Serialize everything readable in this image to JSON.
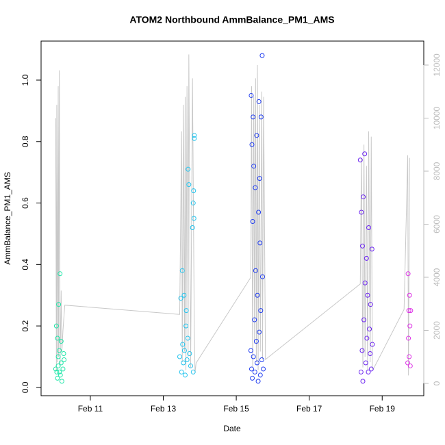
{
  "chart_data": {
    "type": "scatter",
    "title": "ATOM2 Northbound AmmBalance_PM1_AMS",
    "x_label": "Date",
    "y_label": "AmmBalance_PM1_AMS",
    "xlim": [
      9.65,
      20.14
    ],
    "xticks": [
      {
        "value": 11,
        "label": "Feb 11"
      },
      {
        "value": 13,
        "label": "Feb 13"
      },
      {
        "value": 15,
        "label": "Feb 15"
      },
      {
        "value": 17,
        "label": "Feb 17"
      },
      {
        "value": 19,
        "label": "Feb 19"
      }
    ],
    "ylim": [
      -0.027,
      1.127
    ],
    "yticks": [
      {
        "value": 0,
        "label": "0.0"
      },
      {
        "value": 0.2,
        "label": "0.2"
      },
      {
        "value": 0.4,
        "label": "0.4"
      },
      {
        "value": 0.6,
        "label": "0.6"
      },
      {
        "value": 0.8,
        "label": "0.8"
      },
      {
        "value": 1,
        "label": "1.0"
      }
    ],
    "y2lim": [
      -464,
      12903
    ],
    "y2ticks": [
      0,
      2000,
      4000,
      6000,
      8000,
      10000,
      12000
    ],
    "y2_color": "#bbbbbb",
    "series": [
      {
        "color": "#1ee6a8",
        "x": [
          10.05,
          10.07,
          10.08,
          10.1,
          10.1,
          10.12,
          10.12,
          10.13,
          10.15,
          10.15,
          10.17,
          10.18,
          10.2,
          10.2,
          10.22,
          10.25,
          10.27,
          10.28
        ],
        "values": [
          0.06,
          0.2,
          0.05,
          0.16,
          0.03,
          0.1,
          0.07,
          0.27,
          0.05,
          0.12,
          0.37,
          0.04,
          0.08,
          0.15,
          0.02,
          0.06,
          0.11,
          0.09
        ]
      },
      {
        "color": "#22c4ee",
        "x": [
          13.45,
          13.48,
          13.5,
          13.52,
          13.53,
          13.55,
          13.57,
          13.58,
          13.6,
          13.62,
          13.63,
          13.65,
          13.67,
          13.68,
          13.7,
          13.72,
          13.75,
          13.8,
          13.82,
          13.83,
          13.85,
          13.85,
          13.84,
          13.82
        ],
        "values": [
          0.1,
          0.29,
          0.05,
          0.38,
          0.14,
          0.08,
          0.3,
          0.12,
          0.04,
          0.2,
          0.25,
          0.09,
          0.16,
          0.71,
          0.66,
          0.11,
          0.07,
          0.52,
          0.6,
          0.64,
          0.82,
          0.81,
          0.55,
          0.05
        ]
      },
      {
        "color": "#1f3cf0",
        "x": [
          15.4,
          15.41,
          15.42,
          15.43,
          15.44,
          15.45,
          15.46,
          15.47,
          15.48,
          15.5,
          15.51,
          15.52,
          15.53,
          15.55,
          15.56,
          15.57,
          15.58,
          15.6,
          15.61,
          15.62,
          15.63,
          15.64,
          15.65,
          15.66,
          15.67,
          15.68,
          15.7,
          15.71,
          15.72,
          15.74
        ],
        "values": [
          0.12,
          0.95,
          0.06,
          0.79,
          0.03,
          0.54,
          0.88,
          0.1,
          0.72,
          0.22,
          0.05,
          0.65,
          0.38,
          0.15,
          0.82,
          0.08,
          0.3,
          0.02,
          0.57,
          0.93,
          0.18,
          0.68,
          0.47,
          0.04,
          0.25,
          0.88,
          0.09,
          1.08,
          0.36,
          0.06
        ]
      },
      {
        "color": "#6a22f0",
        "x": [
          18.4,
          18.42,
          18.43,
          18.45,
          18.46,
          18.47,
          18.48,
          18.5,
          18.52,
          18.53,
          18.55,
          18.57,
          18.58,
          18.6,
          18.62,
          18.63,
          18.65,
          18.67,
          18.68,
          18.7,
          18.72,
          18.73
        ],
        "values": [
          0.74,
          0.05,
          0.57,
          0.12,
          0.46,
          0.02,
          0.62,
          0.22,
          0.76,
          0.34,
          0.08,
          0.42,
          0.16,
          0.3,
          0.05,
          0.52,
          0.19,
          0.11,
          0.27,
          0.06,
          0.45,
          0.14
        ]
      },
      {
        "color": "#dd30e6",
        "x": [
          19.7,
          19.71,
          19.72,
          19.73,
          19.74,
          19.75,
          19.76,
          19.77,
          19.78
        ],
        "values": [
          0.08,
          0.37,
          0.16,
          0.25,
          0.1,
          0.3,
          0.2,
          0.07,
          0.25
        ]
      },
      {
        "type": "line",
        "axis": "y2",
        "color": "#c8c8c8",
        "x": [
          10.05,
          10.07,
          10.08,
          10.1,
          10.12,
          10.13,
          10.15,
          10.17,
          10.2,
          10.22,
          10.25,
          10.3,
          13.45,
          13.5,
          13.52,
          13.55,
          13.58,
          13.6,
          13.62,
          13.65,
          13.68,
          13.7,
          13.75,
          13.8,
          13.85,
          13.87,
          13.9,
          15.4,
          15.42,
          15.45,
          15.48,
          15.5,
          15.53,
          15.55,
          15.58,
          15.6,
          15.63,
          15.66,
          15.7,
          15.72,
          15.75,
          15.8,
          18.4,
          18.43,
          18.47,
          18.5,
          18.53,
          18.57,
          18.6,
          18.63,
          18.67,
          18.7,
          18.73,
          18.75,
          19.6,
          19.7,
          19.72,
          19.75
        ],
        "values": [
          10000,
          500,
          10500,
          800,
          11200,
          1000,
          11800,
          600,
          3500,
          1200,
          2000,
          2950,
          2600,
          9500,
          800,
          10500,
          1200,
          10800,
          500,
          11200,
          1000,
          12400,
          600,
          11500,
          2000,
          400,
          770,
          4000,
          11200,
          600,
          10800,
          1500,
          11500,
          800,
          12000,
          500,
          10500,
          1200,
          11000,
          900,
          10800,
          900,
          3750,
          8500,
          600,
          9000,
          1000,
          8200,
          500,
          9500,
          800,
          9300,
          600,
          520,
          2790,
          8600,
          300,
          8500
        ]
      }
    ]
  }
}
